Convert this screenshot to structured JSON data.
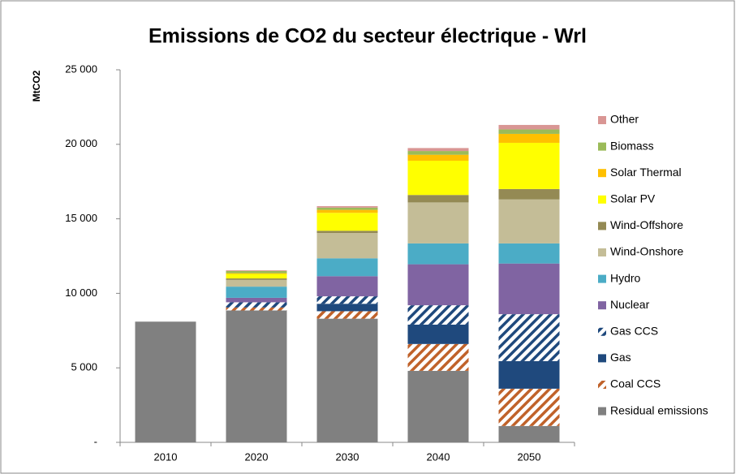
{
  "chart_data": {
    "type": "stacked_bar",
    "title": "Emissions de CO2 du secteur électrique - Wrl",
    "y_label": "MtCO2",
    "categories": [
      "2010",
      "2020",
      "2030",
      "2040",
      "2050"
    ],
    "series": [
      {
        "name": "Residual emissions",
        "color": "#808080",
        "values": [
          8100,
          8850,
          8300,
          4800,
          1100
        ]
      },
      {
        "name": "Coal CCS",
        "color": "#c0622a",
        "hatch": true,
        "values": [
          0,
          200,
          500,
          1800,
          2500
        ]
      },
      {
        "name": "Gas",
        "color": "#1f497d",
        "values": [
          0,
          0,
          500,
          1300,
          1850
        ]
      },
      {
        "name": "Gas CCS",
        "color": "#1f497d",
        "hatch": true,
        "values": [
          0,
          350,
          500,
          1300,
          3150
        ]
      },
      {
        "name": "Nuclear",
        "color": "#8064a2",
        "values": [
          0,
          300,
          1350,
          2750,
          3400
        ]
      },
      {
        "name": "Hydro",
        "color": "#4bacc6",
        "values": [
          0,
          750,
          1200,
          1400,
          1350
        ]
      },
      {
        "name": "Wind-Onshore",
        "color": "#c4bd97",
        "values": [
          0,
          450,
          1700,
          2750,
          2950
        ]
      },
      {
        "name": "Wind-Offshore",
        "color": "#948a54",
        "values": [
          0,
          100,
          150,
          500,
          700
        ]
      },
      {
        "name": "Solar PV",
        "color": "#ffff00",
        "values": [
          0,
          300,
          1200,
          2300,
          3100
        ]
      },
      {
        "name": "Solar Thermal",
        "color": "#ffc000",
        "values": [
          0,
          50,
          200,
          400,
          600
        ]
      },
      {
        "name": "Biomass",
        "color": "#9bbb59",
        "values": [
          0,
          150,
          150,
          250,
          300
        ]
      },
      {
        "name": "Other",
        "color": "#d99694",
        "values": [
          0,
          50,
          100,
          200,
          300
        ]
      }
    ],
    "ylim": [
      0,
      25000
    ],
    "yticks": [
      {
        "value": 0,
        "label": "-"
      },
      {
        "value": 5000,
        "label": "5 000"
      },
      {
        "value": 10000,
        "label": "10 000"
      },
      {
        "value": 15000,
        "label": "15 000"
      },
      {
        "value": 20000,
        "label": "20 000"
      },
      {
        "value": 25000,
        "label": "25 000"
      }
    ],
    "grid": false,
    "legend": "right"
  }
}
